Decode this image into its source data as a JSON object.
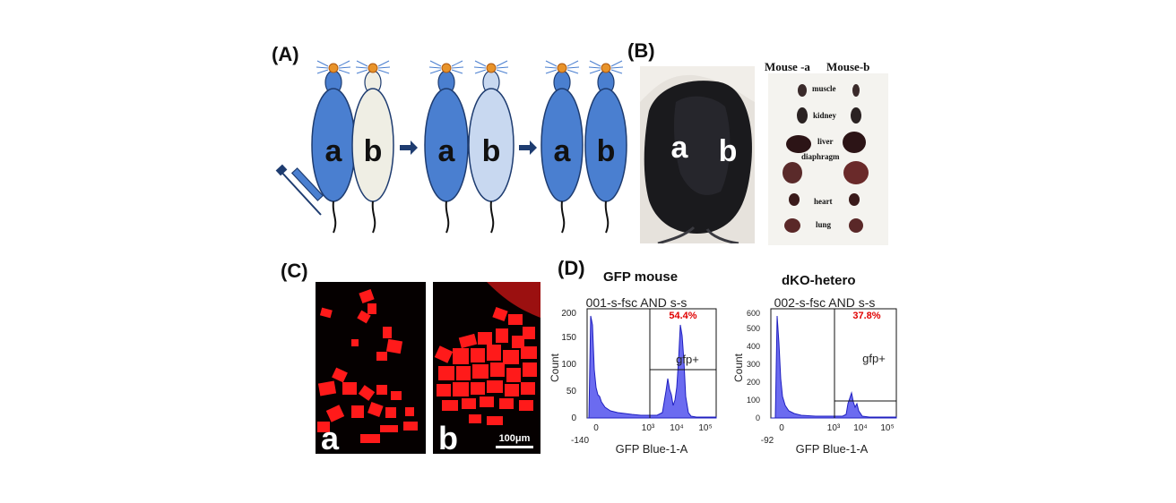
{
  "panels": {
    "A": {
      "label": "(A)",
      "mouse_letters": [
        "a",
        "b",
        "a",
        "b",
        "a",
        "b"
      ]
    },
    "B": {
      "label": "(B)",
      "photo_letters": [
        "a",
        "b"
      ],
      "organ_header_left": "Mouse -a",
      "organ_header_right": "Mouse-b",
      "organs": [
        "muscle",
        "kidney",
        "liver",
        "diaphragm",
        "heart",
        "lung"
      ]
    },
    "C": {
      "label": "(C)",
      "letters": [
        "a",
        "b"
      ],
      "scale_bar": "100μm"
    },
    "D": {
      "label": "(D)",
      "plots": [
        {
          "title": "GFP mouse",
          "gate_title": "001-s-fsc AND s-s",
          "percent": "54.4%",
          "gate_label": "gfp+",
          "y_label": "Count",
          "y_ticks": [
            "0",
            "50",
            "100",
            "150",
            "200"
          ],
          "x_ticks": [
            "0",
            "10³",
            "10⁴",
            "10⁵"
          ],
          "x_min_label": "-140",
          "x_label": "GFP Blue-1-A"
        },
        {
          "title": "dKO-hetero",
          "gate_title": "002-s-fsc AND s-s",
          "percent": "37.8%",
          "gate_label": "gfp+",
          "y_label": "Count",
          "y_ticks": [
            "0",
            "100",
            "200",
            "300",
            "400",
            "500",
            "600"
          ],
          "x_ticks": [
            "0",
            "10³",
            "10⁴",
            "10⁵"
          ],
          "x_min_label": "-92",
          "x_label": "GFP Blue-1-A"
        }
      ]
    }
  },
  "colors": {
    "body_dark": "#4a7fd0",
    "body_light_b1": "#efeee4",
    "body_light_b2": "#c8d8f0",
    "histogram_fill": "#6b6bf0",
    "percent_red": "#e00000",
    "tissue_red": "#ff1a1a"
  }
}
